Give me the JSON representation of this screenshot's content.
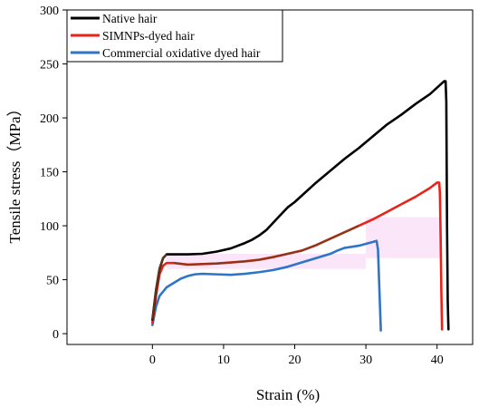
{
  "chart_data": {
    "type": "line",
    "xlabel": "Strain (%)",
    "ylabel": "Tensile stress（MPa）",
    "xlim": [
      -12,
      45
    ],
    "ylim": [
      -10,
      300
    ],
    "xticks": [
      0,
      10,
      20,
      30,
      40
    ],
    "yticks": [
      0,
      50,
      100,
      150,
      200,
      250,
      300
    ],
    "grid": false,
    "legend_position": "top-left",
    "series": [
      {
        "name": "Native hair",
        "color": "#000000",
        "points": [
          [
            0,
            13
          ],
          [
            0.5,
            40
          ],
          [
            1.0,
            60
          ],
          [
            1.5,
            70
          ],
          [
            2.0,
            73.5
          ],
          [
            3,
            73.5
          ],
          [
            5,
            73.5
          ],
          [
            7,
            74
          ],
          [
            9,
            76
          ],
          [
            11,
            79
          ],
          [
            13,
            84
          ],
          [
            14,
            87
          ],
          [
            15,
            91
          ],
          [
            16,
            96
          ],
          [
            17,
            103
          ],
          [
            18,
            110
          ],
          [
            19,
            117
          ],
          [
            20,
            122
          ],
          [
            21,
            128
          ],
          [
            23,
            140
          ],
          [
            25,
            151
          ],
          [
            27,
            162
          ],
          [
            29,
            172
          ],
          [
            31,
            183
          ],
          [
            33,
            194
          ],
          [
            35,
            203
          ],
          [
            37,
            213
          ],
          [
            39,
            222
          ],
          [
            40,
            228
          ],
          [
            41,
            234
          ],
          [
            41.2,
            234
          ],
          [
            41.3,
            215
          ],
          [
            41.4,
            100
          ],
          [
            41.5,
            30
          ],
          [
            41.6,
            4
          ]
        ]
      },
      {
        "name": "SIMNPs-dyed hair",
        "color": "#e8231a",
        "points": [
          [
            0,
            10
          ],
          [
            0.5,
            35
          ],
          [
            1.0,
            55
          ],
          [
            1.5,
            63
          ],
          [
            2.0,
            65.5
          ],
          [
            3,
            65.5
          ],
          [
            5,
            64
          ],
          [
            7,
            64.5
          ],
          [
            9,
            65
          ],
          [
            11,
            66
          ],
          [
            13,
            67
          ],
          [
            15,
            68.5
          ],
          [
            17,
            71
          ],
          [
            19,
            74
          ],
          [
            21,
            77
          ],
          [
            23,
            82
          ],
          [
            25,
            88
          ],
          [
            27,
            94
          ],
          [
            29,
            100
          ],
          [
            31,
            106
          ],
          [
            33,
            113
          ],
          [
            35,
            120
          ],
          [
            37,
            127
          ],
          [
            39,
            135
          ],
          [
            40,
            140
          ],
          [
            40.3,
            140
          ],
          [
            40.4,
            130
          ],
          [
            40.5,
            90
          ],
          [
            40.6,
            40
          ],
          [
            40.7,
            4
          ]
        ]
      },
      {
        "name": "Commercial oxidative dyed hair",
        "color": "#2e75c8",
        "points": [
          [
            0,
            8
          ],
          [
            0.5,
            25
          ],
          [
            1.0,
            35
          ],
          [
            2,
            43
          ],
          [
            3,
            47
          ],
          [
            4,
            51
          ],
          [
            5,
            53.5
          ],
          [
            6,
            55
          ],
          [
            7,
            55.5
          ],
          [
            9,
            55
          ],
          [
            11,
            54.5
          ],
          [
            13,
            55.5
          ],
          [
            15,
            57
          ],
          [
            17,
            59
          ],
          [
            19,
            62
          ],
          [
            21,
            66
          ],
          [
            23,
            70
          ],
          [
            25,
            74
          ],
          [
            26,
            77
          ],
          [
            27,
            79.5
          ],
          [
            29,
            81.5
          ],
          [
            31,
            85
          ],
          [
            31.5,
            86
          ],
          [
            31.7,
            78
          ],
          [
            31.9,
            40
          ],
          [
            32.1,
            3
          ]
        ]
      }
    ],
    "overlap_color": "#7a3a1a",
    "overlap_ranges": {
      "Native hair": [
        0,
        2.2
      ],
      "SIMNPs-dyed hair": [
        2.2,
        30
      ]
    }
  }
}
